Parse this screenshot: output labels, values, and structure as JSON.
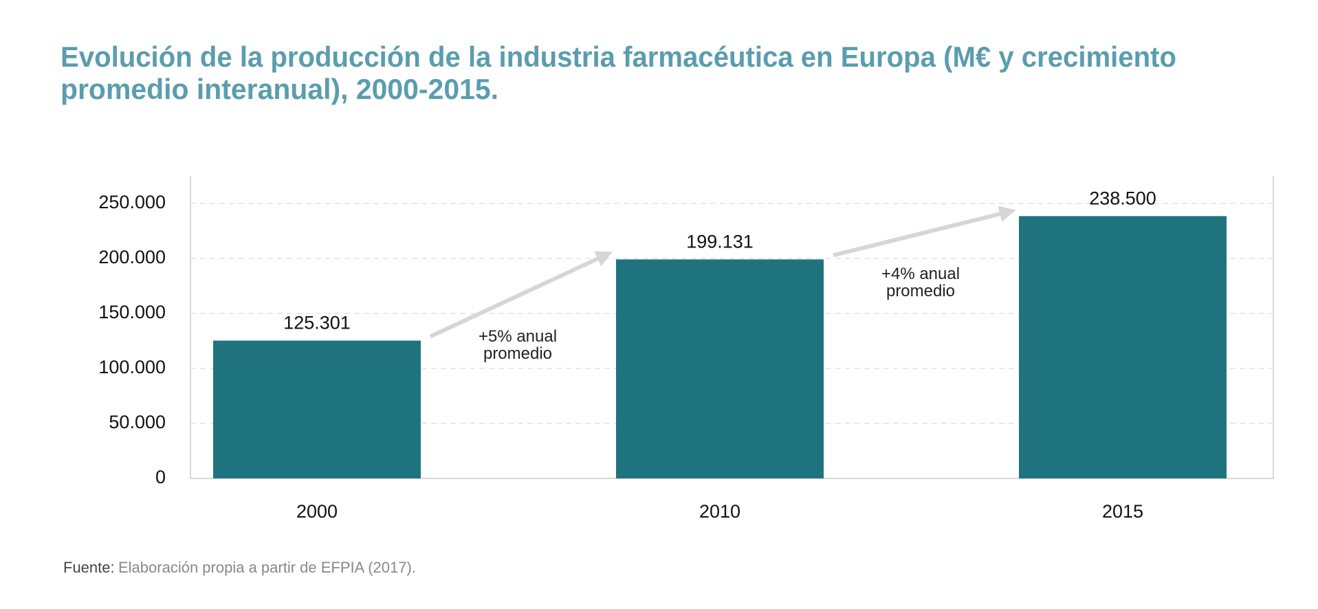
{
  "chart_data": {
    "type": "bar",
    "title": [
      "Evolución de la producción de la industria farmacéutica en Europa (M€ y crecimiento",
      "promedio interanual), 2000-2015."
    ],
    "categories": [
      "2000",
      "2010",
      "2015"
    ],
    "values": [
      125301,
      199131,
      238500
    ],
    "value_labels": [
      "125.301",
      "199.131",
      "238.500"
    ],
    "color": "#1f737f",
    "ylim": [
      0,
      275000
    ],
    "yticks": [
      0,
      {
        "value": 50000,
        "label": "50.000"
      },
      {
        "value": 100000,
        "label": "100.000"
      },
      {
        "value": 150000,
        "label": "150.000"
      },
      {
        "value": 200000,
        "label": "200.000"
      },
      {
        "value": 250000,
        "label": "250.000"
      }
    ],
    "grid": true,
    "annotations": [
      [
        "+5% anual",
        "promedio"
      ],
      [
        "+4% anual",
        "promedio"
      ]
    ],
    "source": {
      "label": "Fuente:",
      "text": "Elaboración propia a partir de EFPIA (2017)."
    }
  }
}
